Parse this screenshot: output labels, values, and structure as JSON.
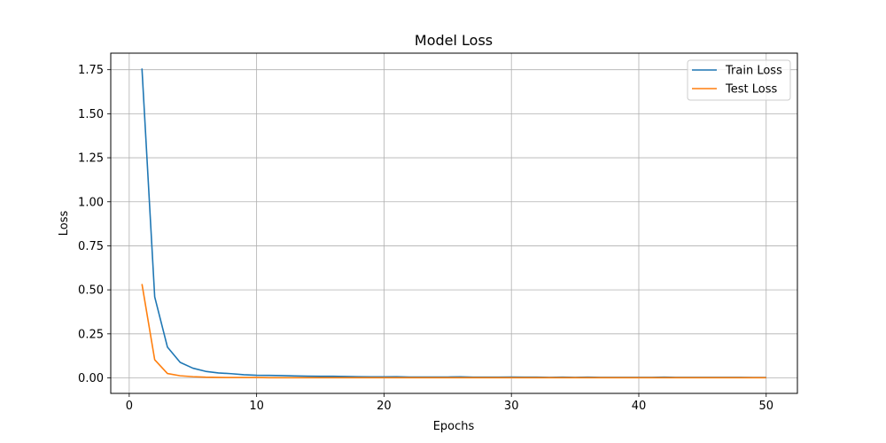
{
  "chart_data": {
    "type": "line",
    "title": "Model Loss",
    "xlabel": "Epochs",
    "ylabel": "Loss",
    "xlim": [
      -1.45,
      52.45
    ],
    "ylim": [
      -0.088,
      1.844
    ],
    "grid": true,
    "legend_position": "top-right",
    "x_ticks": [
      0,
      10,
      20,
      30,
      40,
      50
    ],
    "x_tick_labels": [
      "0",
      "10",
      "20",
      "30",
      "40",
      "50"
    ],
    "y_ticks": [
      0.0,
      0.25,
      0.5,
      0.75,
      1.0,
      1.25,
      1.5,
      1.75
    ],
    "y_tick_labels": [
      "0.00",
      "0.25",
      "0.50",
      "0.75",
      "1.00",
      "1.25",
      "1.50",
      "1.75"
    ],
    "x": [
      1,
      2,
      3,
      4,
      5,
      6,
      7,
      8,
      9,
      10,
      11,
      12,
      13,
      14,
      15,
      16,
      17,
      18,
      19,
      20,
      21,
      22,
      23,
      24,
      25,
      26,
      27,
      28,
      29,
      30,
      31,
      32,
      33,
      34,
      35,
      36,
      37,
      38,
      39,
      40,
      41,
      42,
      43,
      44,
      45,
      46,
      47,
      48,
      49,
      50
    ],
    "series": [
      {
        "name": "Train Loss",
        "color": "#1f77b4",
        "values": [
          1.757,
          0.46,
          0.175,
          0.088,
          0.055,
          0.037,
          0.028,
          0.024,
          0.018,
          0.015,
          0.014,
          0.013,
          0.011,
          0.01,
          0.009,
          0.009,
          0.008,
          0.007,
          0.006,
          0.006,
          0.007,
          0.005,
          0.005,
          0.005,
          0.005,
          0.006,
          0.004,
          0.004,
          0.004,
          0.005,
          0.004,
          0.004,
          0.003,
          0.004,
          0.003,
          0.004,
          0.003,
          0.003,
          0.003,
          0.003,
          0.003,
          0.004,
          0.003,
          0.003,
          0.003,
          0.003,
          0.003,
          0.003,
          0.002,
          0.002
        ]
      },
      {
        "name": "Test Loss",
        "color": "#ff7f0e",
        "values": [
          0.533,
          0.103,
          0.025,
          0.012,
          0.007,
          0.004,
          0.003,
          0.002,
          0.002,
          0.002,
          0.001,
          0.001,
          0.001,
          0.001,
          0.001,
          0.001,
          0.001,
          0.001,
          0.001,
          0.001,
          0.001,
          0.001,
          0.001,
          0.001,
          0.001,
          0.001,
          0.001,
          0.001,
          0.001,
          0.001,
          0.001,
          0.001,
          0.001,
          0.001,
          0.001,
          0.001,
          0.001,
          0.001,
          0.001,
          0.001,
          0.001,
          0.001,
          0.001,
          0.001,
          0.001,
          0.001,
          0.001,
          0.001,
          0.001,
          0.001
        ]
      }
    ]
  }
}
